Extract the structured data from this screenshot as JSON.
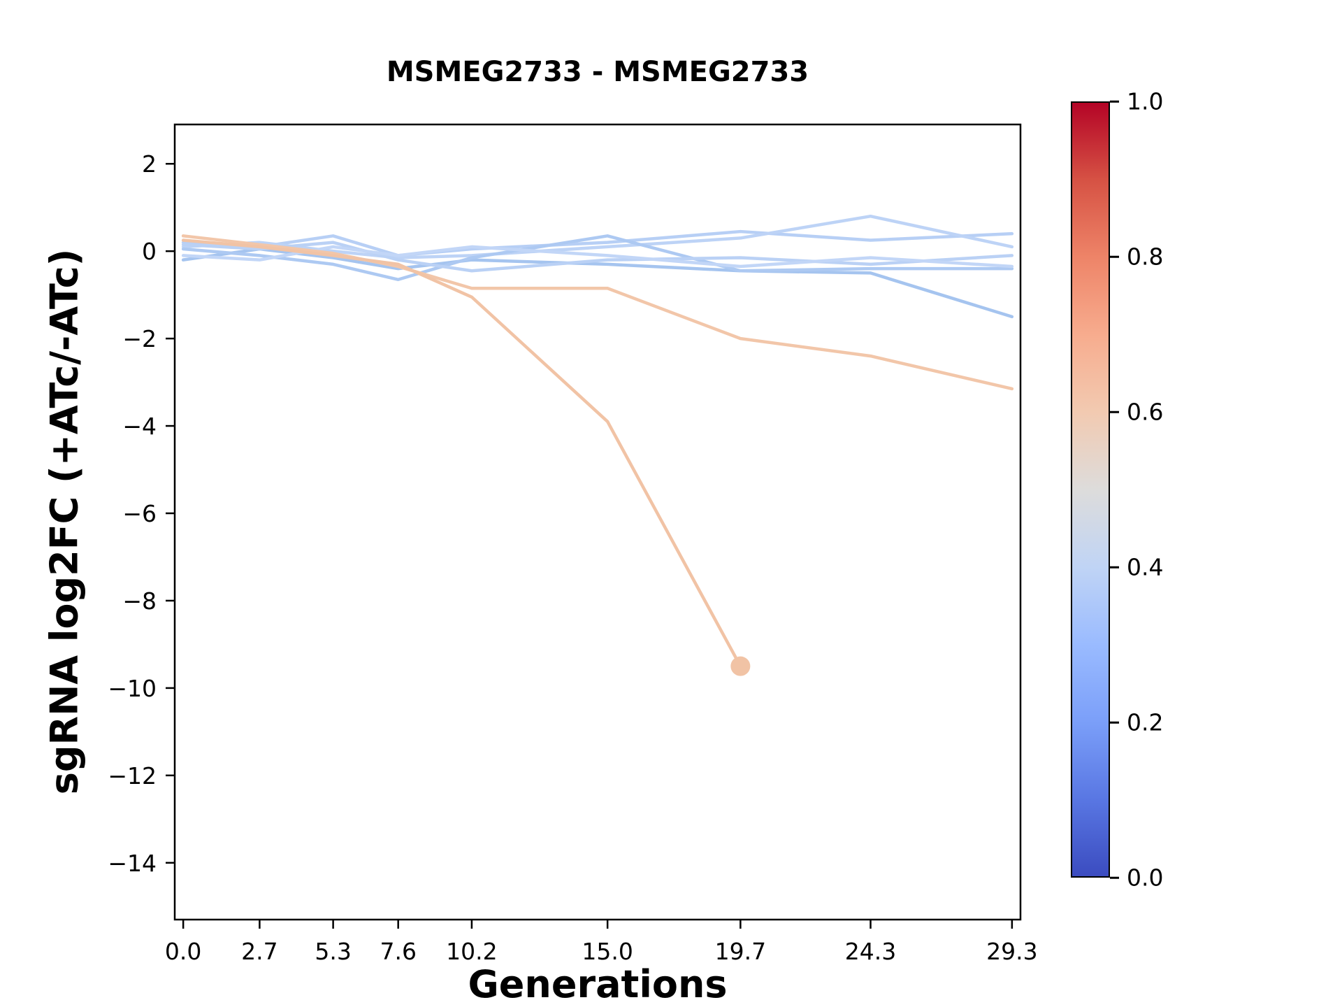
{
  "title": "MSMEG2733 - MSMEG2733",
  "chart_data": {
    "type": "line",
    "title": "MSMEG2733 - MSMEG2733",
    "xlabel": "Generations",
    "ylabel": "sgRNA log2FC (+ATc/-ATc)",
    "xlim": [
      -0.3,
      29.6
    ],
    "ylim": [
      -15.3,
      2.9
    ],
    "grid": false,
    "legend": "none (colorbar only)",
    "xticks": [
      0.0,
      2.7,
      5.3,
      7.6,
      10.2,
      15.0,
      19.7,
      24.3,
      29.3
    ],
    "xtick_labels": [
      "0.0",
      "2.7",
      "5.3",
      "7.6",
      "10.2",
      "15.0",
      "19.7",
      "24.3",
      "29.3"
    ],
    "yticks": [
      2,
      0,
      -2,
      -4,
      -6,
      -8,
      -10,
      -12,
      -14
    ],
    "ytick_labels": [
      "2",
      "0",
      "−2",
      "−4",
      "−6",
      "−8",
      "−10",
      "−12",
      "−14"
    ],
    "x": [
      0.0,
      2.7,
      5.3,
      7.6,
      10.2,
      15.0,
      19.7,
      24.3,
      29.3
    ],
    "series": [
      {
        "name": "line-1",
        "color": "#b7cff5",
        "x": [
          0.0,
          2.7,
          5.3,
          7.6,
          10.2,
          15.0,
          19.7,
          24.3,
          29.3
        ],
        "y": [
          0.2,
          0.1,
          0.35,
          -0.1,
          0.05,
          0.2,
          0.45,
          0.25,
          0.4
        ],
        "end_marker": false
      },
      {
        "name": "line-2",
        "color": "#bdd3f6",
        "x": [
          0.0,
          2.7,
          5.3,
          7.6,
          10.2,
          15.0,
          19.7,
          24.3,
          29.3
        ],
        "y": [
          0.1,
          0.2,
          0.0,
          -0.15,
          -0.1,
          0.1,
          0.3,
          0.8,
          0.1
        ],
        "end_marker": false
      },
      {
        "name": "line-3",
        "color": "#a5c4ef",
        "x": [
          0.0,
          2.7,
          5.3,
          7.6,
          10.2,
          15.0,
          19.7,
          24.3,
          29.3
        ],
        "y": [
          -0.2,
          0.05,
          -0.15,
          -0.4,
          -0.2,
          -0.3,
          -0.45,
          -0.5,
          -1.5
        ],
        "end_marker": false
      },
      {
        "name": "line-4",
        "color": "#adc9f2",
        "x": [
          0.0,
          2.7,
          5.3,
          7.6,
          10.2,
          15.0,
          19.7,
          24.3,
          29.3
        ],
        "y": [
          0.05,
          -0.1,
          -0.3,
          -0.65,
          -0.15,
          0.35,
          -0.45,
          -0.4,
          -0.4
        ],
        "end_marker": false
      },
      {
        "name": "line-5",
        "color": "#bad1f5",
        "x": [
          0.0,
          2.7,
          5.3,
          7.6,
          10.2,
          15.0,
          19.7,
          24.3,
          29.3
        ],
        "y": [
          0.15,
          0.05,
          0.2,
          -0.2,
          -0.45,
          -0.2,
          -0.15,
          -0.3,
          -0.1
        ],
        "end_marker": false
      },
      {
        "name": "line-6",
        "color": "#c2d6f7",
        "x": [
          0.0,
          2.7,
          5.3,
          7.6,
          10.2,
          15.0,
          19.7,
          24.3,
          29.3
        ],
        "y": [
          -0.1,
          -0.2,
          0.1,
          -0.1,
          0.1,
          -0.1,
          -0.35,
          -0.15,
          -0.35
        ],
        "end_marker": false
      },
      {
        "name": "line-7",
        "color": "#f2c6a9",
        "x": [
          0.0,
          2.7,
          5.3,
          7.6,
          10.2,
          15.0,
          19.7,
          24.3,
          29.3
        ],
        "y": [
          0.35,
          0.15,
          -0.05,
          -0.35,
          -0.85,
          -0.85,
          -2.0,
          -2.4,
          -3.15
        ],
        "end_marker": false
      },
      {
        "name": "line-8",
        "color": "#f1c3a5",
        "x": [
          0.0,
          2.7,
          5.3,
          7.6,
          10.2,
          15.0,
          19.7
        ],
        "y": [
          0.25,
          0.1,
          -0.1,
          -0.3,
          -1.05,
          -3.9,
          -9.5
        ],
        "end_marker": true
      }
    ],
    "colorbar": {
      "colormap": "coolwarm",
      "ticks": [
        0.0,
        0.2,
        0.4,
        0.6,
        0.8,
        1.0
      ],
      "tick_labels": [
        "0.0",
        "0.2",
        "0.4",
        "0.6",
        "0.8",
        "1.0"
      ],
      "stops": [
        {
          "pos": 0.0,
          "color": "#3b4cc0"
        },
        {
          "pos": 0.1,
          "color": "#5977e3"
        },
        {
          "pos": 0.2,
          "color": "#7b9ff9"
        },
        {
          "pos": 0.3,
          "color": "#9abbff"
        },
        {
          "pos": 0.4,
          "color": "#c0d4f5"
        },
        {
          "pos": 0.5,
          "color": "#dddcdb"
        },
        {
          "pos": 0.6,
          "color": "#f2cab1"
        },
        {
          "pos": 0.7,
          "color": "#f7ac8e"
        },
        {
          "pos": 0.8,
          "color": "#ee8468"
        },
        {
          "pos": 0.9,
          "color": "#d65244"
        },
        {
          "pos": 1.0,
          "color": "#b40426"
        }
      ]
    }
  }
}
